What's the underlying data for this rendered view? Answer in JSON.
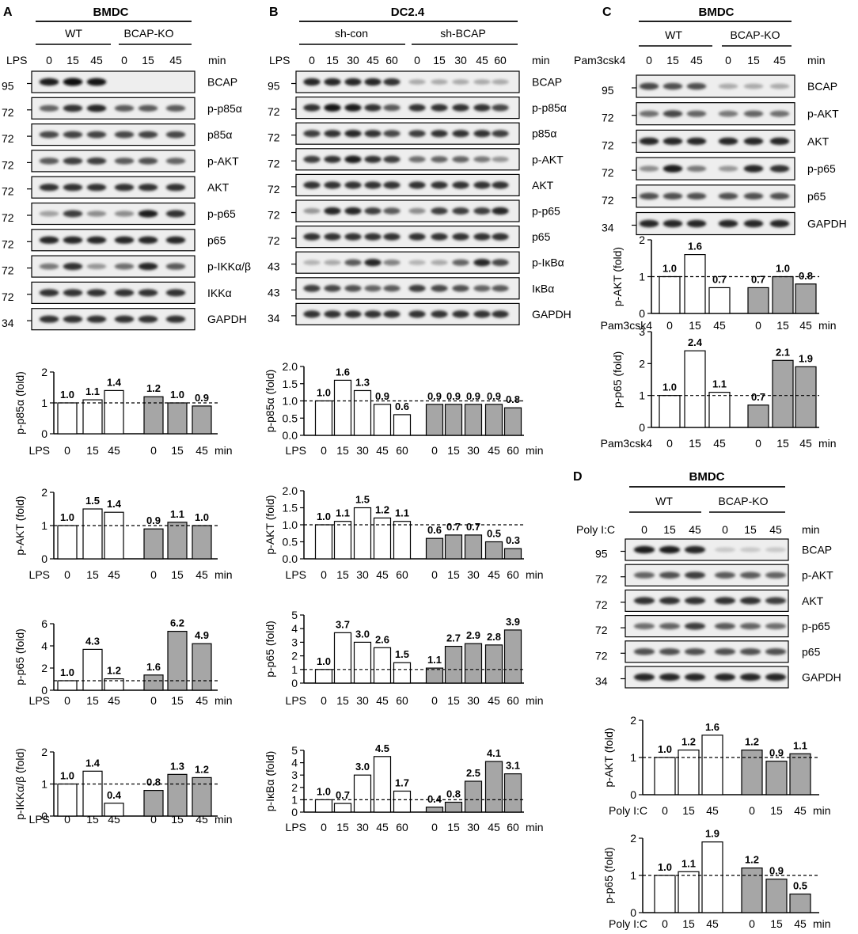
{
  "panels": {
    "A": {
      "letter": "A",
      "cell": "BMDC",
      "lane_var": "LPS",
      "unit": "min",
      "groups": [
        "WT",
        "BCAP-KO"
      ],
      "lanes": [
        "0",
        "15",
        "45",
        "0",
        "15",
        "45"
      ],
      "blots": [
        {
          "label": "BCAP",
          "mw": "95",
          "intensity": [
            0.9,
            1.0,
            0.95,
            0,
            0,
            0
          ]
        },
        {
          "label": "p-p85α",
          "mw": "72",
          "intensity": [
            0.55,
            0.8,
            0.85,
            0.6,
            0.6,
            0.6
          ]
        },
        {
          "label": "p85α",
          "mw": "72",
          "intensity": [
            0.7,
            0.72,
            0.72,
            0.7,
            0.72,
            0.7
          ]
        },
        {
          "label": "p-AKT",
          "mw": "72",
          "intensity": [
            0.6,
            0.75,
            0.75,
            0.6,
            0.65,
            0.55
          ]
        },
        {
          "label": "AKT",
          "mw": "72",
          "intensity": [
            0.8,
            0.8,
            0.8,
            0.8,
            0.8,
            0.8
          ]
        },
        {
          "label": "p-p65",
          "mw": "72",
          "intensity": [
            0.25,
            0.75,
            0.35,
            0.35,
            0.9,
            0.8
          ]
        },
        {
          "label": "p65",
          "mw": "72",
          "intensity": [
            0.85,
            0.85,
            0.85,
            0.85,
            0.85,
            0.85
          ]
        },
        {
          "label": "p-IKKα/β",
          "mw": "72",
          "intensity": [
            0.45,
            0.8,
            0.3,
            0.5,
            0.85,
            0.6
          ]
        },
        {
          "label": "IKKα",
          "mw": "72",
          "intensity": [
            0.8,
            0.8,
            0.8,
            0.8,
            0.8,
            0.8
          ]
        },
        {
          "label": "GAPDH",
          "mw": "34",
          "intensity": [
            0.8,
            0.8,
            0.8,
            0.8,
            0.8,
            0.8
          ]
        }
      ],
      "ticks": [
        "0",
        "15",
        "45",
        "0",
        "15",
        "45"
      ]
    },
    "B": {
      "letter": "B",
      "cell": "DC2.4",
      "lane_var": "LPS",
      "unit": "min",
      "groups": [
        "sh-con",
        "sh-BCAP"
      ],
      "lanes": [
        "0",
        "15",
        "30",
        "45",
        "60",
        "0",
        "15",
        "30",
        "45",
        "60"
      ],
      "blots": [
        {
          "label": "BCAP",
          "mw": "95",
          "intensity": [
            0.85,
            0.85,
            0.85,
            0.85,
            0.8,
            0.2,
            0.2,
            0.2,
            0.2,
            0.2
          ]
        },
        {
          "label": "p-p85α",
          "mw": "72",
          "intensity": [
            0.8,
            0.95,
            0.9,
            0.8,
            0.6,
            0.8,
            0.8,
            0.8,
            0.8,
            0.7
          ]
        },
        {
          "label": "p85α",
          "mw": "72",
          "intensity": [
            0.75,
            0.8,
            0.85,
            0.8,
            0.7,
            0.75,
            0.8,
            0.8,
            0.8,
            0.75
          ]
        },
        {
          "label": "p-AKT",
          "mw": "72",
          "intensity": [
            0.75,
            0.8,
            0.9,
            0.8,
            0.75,
            0.5,
            0.55,
            0.55,
            0.45,
            0.3
          ]
        },
        {
          "label": "AKT",
          "mw": "72",
          "intensity": [
            0.8,
            0.8,
            0.8,
            0.8,
            0.8,
            0.8,
            0.8,
            0.8,
            0.8,
            0.8
          ]
        },
        {
          "label": "p-p65",
          "mw": "72",
          "intensity": [
            0.3,
            0.85,
            0.85,
            0.75,
            0.6,
            0.35,
            0.75,
            0.75,
            0.75,
            0.85
          ]
        },
        {
          "label": "p65",
          "mw": "72",
          "intensity": [
            0.8,
            0.8,
            0.8,
            0.8,
            0.8,
            0.8,
            0.8,
            0.8,
            0.8,
            0.8
          ]
        },
        {
          "label": "p-IκBα",
          "mw": "43",
          "intensity": [
            0.15,
            0.2,
            0.6,
            0.85,
            0.4,
            0.15,
            0.2,
            0.55,
            0.85,
            0.7
          ]
        },
        {
          "label": "IκBα",
          "mw": "43",
          "intensity": [
            0.75,
            0.7,
            0.65,
            0.55,
            0.6,
            0.75,
            0.7,
            0.65,
            0.55,
            0.6
          ]
        },
        {
          "label": "GAPDH",
          "mw": "34",
          "intensity": [
            0.8,
            0.8,
            0.8,
            0.8,
            0.8,
            0.8,
            0.8,
            0.8,
            0.8,
            0.8
          ]
        }
      ],
      "ticks": [
        "0",
        "15",
        "30",
        "45",
        "60",
        "0",
        "15",
        "30",
        "45",
        "60"
      ]
    },
    "C": {
      "letter": "C",
      "cell": "BMDC",
      "lane_var": "Pam3csk4",
      "unit": "min",
      "groups": [
        "WT",
        "BCAP-KO"
      ],
      "lanes": [
        "0",
        "15",
        "45",
        "0",
        "15",
        "45"
      ],
      "blots": [
        {
          "label": "BCAP",
          "mw": "95",
          "intensity": [
            0.7,
            0.65,
            0.65,
            0.2,
            0.2,
            0.2
          ]
        },
        {
          "label": "p-AKT",
          "mw": "72",
          "intensity": [
            0.5,
            0.7,
            0.55,
            0.45,
            0.55,
            0.5
          ]
        },
        {
          "label": "AKT",
          "mw": "72",
          "intensity": [
            0.85,
            0.85,
            0.85,
            0.85,
            0.85,
            0.85
          ]
        },
        {
          "label": "p-p65",
          "mw": "72",
          "intensity": [
            0.35,
            0.9,
            0.45,
            0.3,
            0.85,
            0.8
          ]
        },
        {
          "label": "p65",
          "mw": "72",
          "intensity": [
            0.65,
            0.65,
            0.65,
            0.65,
            0.65,
            0.65
          ]
        },
        {
          "label": "GAPDH",
          "mw": "34",
          "intensity": [
            0.85,
            0.85,
            0.85,
            0.85,
            0.85,
            0.85
          ]
        }
      ],
      "ticks": [
        "0",
        "15",
        "45",
        "0",
        "15",
        "45"
      ]
    },
    "D": {
      "letter": "D",
      "cell": "BMDC",
      "lane_var": "Poly I:C",
      "unit": "min",
      "groups": [
        "WT",
        "BCAP-KO"
      ],
      "lanes": [
        "0",
        "15",
        "45",
        "0",
        "15",
        "45"
      ],
      "blots": [
        {
          "label": "BCAP",
          "mw": "95",
          "intensity": [
            0.9,
            0.9,
            0.85,
            0.05,
            0.05,
            0.05
          ]
        },
        {
          "label": "p-AKT",
          "mw": "72",
          "intensity": [
            0.55,
            0.65,
            0.75,
            0.6,
            0.6,
            0.55
          ]
        },
        {
          "label": "AKT",
          "mw": "72",
          "intensity": [
            0.8,
            0.8,
            0.8,
            0.8,
            0.8,
            0.75
          ]
        },
        {
          "label": "p-p65",
          "mw": "72",
          "intensity": [
            0.5,
            0.55,
            0.75,
            0.6,
            0.55,
            0.5
          ]
        },
        {
          "label": "p65",
          "mw": "72",
          "intensity": [
            0.65,
            0.65,
            0.65,
            0.65,
            0.65,
            0.65
          ]
        },
        {
          "label": "GAPDH",
          "mw": "34",
          "intensity": [
            0.85,
            0.85,
            0.85,
            0.85,
            0.85,
            0.85
          ]
        }
      ],
      "ticks": [
        "0",
        "15",
        "45",
        "0",
        "15",
        "45"
      ]
    }
  },
  "colors": {
    "control_bar": "#ffffff",
    "knockout_bar": "#a6a6a6",
    "stroke": "#000000"
  },
  "chart_data": [
    {
      "panel": "A",
      "type": "bar",
      "ylabel": "p-p85α (fold)",
      "xlabel_left": "LPS",
      "xlabel_right": "min",
      "categories": [
        "0",
        "15",
        "45",
        "0",
        "15",
        "45"
      ],
      "groups": [
        "WT",
        "BCAP-KO"
      ],
      "values": [
        1.0,
        1.1,
        1.4,
        1.2,
        1.0,
        0.9
      ],
      "value_labels": [
        "1.0",
        "1.1",
        "1.4",
        "1.2",
        "1.0",
        "0.9"
      ],
      "yticks": [
        "0",
        "1",
        "2"
      ],
      "ylim": [
        0,
        2
      ],
      "reference_line": 1,
      "show_xlabels": true
    },
    {
      "panel": "A",
      "type": "bar",
      "ylabel": "p-AKT (fold)",
      "xlabel_left": "LPS",
      "xlabel_right": "min",
      "categories": [
        "0",
        "15",
        "45",
        "0",
        "15",
        "45"
      ],
      "groups": [
        "WT",
        "BCAP-KO"
      ],
      "values": [
        1.0,
        1.5,
        1.4,
        0.9,
        1.1,
        1.0
      ],
      "value_labels": [
        "1.0",
        "1.5",
        "1.4",
        "0.9",
        "1.1",
        "1.0"
      ],
      "yticks": [
        "0",
        "1",
        "2"
      ],
      "ylim": [
        0,
        2
      ],
      "reference_line": 1,
      "show_xlabels": true
    },
    {
      "panel": "A",
      "type": "bar",
      "ylabel": "p-p65 (fold)",
      "xlabel_left": "LPS",
      "xlabel_right": "min",
      "categories": [
        "0",
        "15",
        "45",
        "0",
        "15",
        "45"
      ],
      "groups": [
        "WT",
        "BCAP-KO"
      ],
      "values": [
        1.0,
        4.3,
        1.2,
        1.6,
        6.2,
        4.9
      ],
      "value_labels": [
        "1.0",
        "4.3",
        "1.2",
        "1.6",
        "6.2",
        "4.9"
      ],
      "yticks": [
        "0",
        "2",
        "4",
        "6"
      ],
      "ylim": [
        0,
        7
      ],
      "reference_line": 1,
      "show_xlabels": true
    },
    {
      "panel": "A",
      "type": "bar",
      "ylabel": "p-IKKα/β (fold)",
      "xlabel_left": "LPS",
      "xlabel_right": "min",
      "categories": [
        "0",
        "15",
        "45",
        "0",
        "15",
        "45"
      ],
      "groups": [
        "WT",
        "BCAP-KO"
      ],
      "values": [
        1.0,
        1.4,
        0.4,
        0.8,
        1.3,
        1.2
      ],
      "value_labels": [
        "1.0",
        "1.4",
        "0.4",
        "0.8",
        "1.3",
        "1.2"
      ],
      "yticks": [
        "0",
        "1",
        "2"
      ],
      "ylim": [
        0,
        2
      ],
      "reference_line": 1,
      "show_xlabels": true
    },
    {
      "panel": "B",
      "type": "bar",
      "ylabel": "p-p85α (fold)",
      "xlabel_left": "LPS",
      "xlabel_right": "min",
      "categories": [
        "0",
        "15",
        "30",
        "45",
        "60",
        "0",
        "15",
        "30",
        "45",
        "60"
      ],
      "groups": [
        "sh-con",
        "sh-BCAP"
      ],
      "values": [
        1.0,
        1.6,
        1.3,
        0.9,
        0.6,
        0.9,
        0.9,
        0.9,
        0.9,
        0.8
      ],
      "value_labels": [
        "1.0",
        "1.6",
        "1.3",
        "0.9",
        "0.6",
        "0.9",
        "0.9",
        "0.9",
        "0.9",
        "0.8"
      ],
      "yticks": [
        "0.0",
        "0.5",
        "1.0",
        "1.5",
        "2.0"
      ],
      "ylim": [
        0,
        2
      ],
      "reference_line": 1,
      "show_xlabels": true
    },
    {
      "panel": "B",
      "type": "bar",
      "ylabel": "p-AKT (fold)",
      "xlabel_left": "LPS",
      "xlabel_right": "min",
      "categories": [
        "0",
        "15",
        "30",
        "45",
        "60",
        "0",
        "15",
        "30",
        "45",
        "60"
      ],
      "groups": [
        "sh-con",
        "sh-BCAP"
      ],
      "values": [
        1.0,
        1.1,
        1.5,
        1.2,
        1.1,
        0.6,
        0.7,
        0.7,
        0.5,
        0.3
      ],
      "value_labels": [
        "1.0",
        "1.1",
        "1.5",
        "1.2",
        "1.1",
        "0.6",
        "0.7",
        "0.7",
        "0.5",
        "0.3"
      ],
      "yticks": [
        "0.0",
        "0.5",
        "1.0",
        "1.5",
        "2.0"
      ],
      "ylim": [
        0,
        2
      ],
      "reference_line": 1,
      "show_xlabels": true
    },
    {
      "panel": "B",
      "type": "bar",
      "ylabel": "p-p65 (fold)",
      "xlabel_left": "LPS",
      "xlabel_right": "min",
      "categories": [
        "0",
        "15",
        "30",
        "45",
        "60",
        "0",
        "15",
        "30",
        "45",
        "60"
      ],
      "groups": [
        "sh-con",
        "sh-BCAP"
      ],
      "values": [
        1.0,
        3.7,
        3.0,
        2.6,
        1.5,
        1.1,
        2.7,
        2.9,
        2.8,
        3.9
      ],
      "value_labels": [
        "1.0",
        "3.7",
        "3.0",
        "2.6",
        "1.5",
        "1.1",
        "2.7",
        "2.9",
        "2.8",
        "3.9"
      ],
      "yticks": [
        "0",
        "1",
        "2",
        "3",
        "4",
        "5"
      ],
      "ylim": [
        0,
        5
      ],
      "reference_line": 1,
      "show_xlabels": true
    },
    {
      "panel": "B",
      "type": "bar",
      "ylabel": "p-IκBα (fold)",
      "xlabel_left": "LPS",
      "xlabel_right": "min",
      "categories": [
        "0",
        "15",
        "30",
        "45",
        "60",
        "0",
        "15",
        "30",
        "45",
        "60"
      ],
      "groups": [
        "sh-con",
        "sh-BCAP"
      ],
      "values": [
        1.0,
        0.7,
        3.0,
        4.5,
        1.7,
        0.4,
        0.8,
        2.5,
        4.1,
        3.1
      ],
      "value_labels": [
        "1.0",
        "0.7",
        "3.0",
        "4.5",
        "1.7",
        "0.4",
        "0.8",
        "2.5",
        "4.1",
        "3.1"
      ],
      "yticks": [
        "0",
        "1",
        "2",
        "3",
        "4",
        "5"
      ],
      "ylim": [
        0,
        5
      ],
      "reference_line": 1,
      "show_xlabels": true
    },
    {
      "panel": "C",
      "type": "bar",
      "ylabel": "p-AKT (fold)",
      "xlabel_left": "Pam3csk4",
      "xlabel_right": "min",
      "categories": [
        "0",
        "15",
        "45",
        "0",
        "15",
        "45"
      ],
      "groups": [
        "WT",
        "BCAP-KO"
      ],
      "values": [
        1.0,
        1.6,
        0.7,
        0.7,
        1.0,
        0.8
      ],
      "value_labels": [
        "1.0",
        "1.6",
        "0.7",
        "0.7",
        "1.0",
        "0.8"
      ],
      "yticks": [
        "0",
        "1",
        "2"
      ],
      "ylim": [
        0,
        2
      ],
      "reference_line": 1,
      "show_xlabels": true
    },
    {
      "panel": "C",
      "type": "bar",
      "ylabel": "p-p65 (fold)",
      "xlabel_left": "Pam3csk4",
      "xlabel_right": "min",
      "categories": [
        "0",
        "15",
        "45",
        "0",
        "15",
        "45"
      ],
      "groups": [
        "WT",
        "BCAP-KO"
      ],
      "values": [
        1.0,
        2.4,
        1.1,
        0.7,
        2.1,
        1.9
      ],
      "value_labels": [
        "1.0",
        "2.4",
        "1.1",
        "0.7",
        "2.1",
        "1.9"
      ],
      "yticks": [
        "0",
        "1",
        "2",
        "3"
      ],
      "ylim": [
        0,
        3
      ],
      "reference_line": 1,
      "show_xlabels": true
    },
    {
      "panel": "D",
      "type": "bar",
      "ylabel": "p-AKT (fold)",
      "xlabel_left": "Poly I:C",
      "xlabel_right": "min",
      "categories": [
        "0",
        "15",
        "45",
        "0",
        "15",
        "45"
      ],
      "groups": [
        "WT",
        "BCAP-KO"
      ],
      "values": [
        1.0,
        1.2,
        1.6,
        1.2,
        0.9,
        1.1
      ],
      "value_labels": [
        "1.0",
        "1.2",
        "1.6",
        "1.2",
        "0.9",
        "1.1"
      ],
      "yticks": [
        "0",
        "1",
        "2"
      ],
      "ylim": [
        0,
        2
      ],
      "reference_line": 1,
      "show_xlabels": true
    },
    {
      "panel": "D",
      "type": "bar",
      "ylabel": "p-p65 (fold)",
      "xlabel_left": "Poly I:C",
      "xlabel_right": "min",
      "categories": [
        "0",
        "15",
        "45",
        "0",
        "15",
        "45"
      ],
      "groups": [
        "WT",
        "BCAP-KO"
      ],
      "values": [
        1.0,
        1.1,
        1.9,
        1.2,
        0.9,
        0.5
      ],
      "value_labels": [
        "1.0",
        "1.1",
        "1.9",
        "1.2",
        "0.9",
        "0.5"
      ],
      "yticks": [
        "0",
        "1",
        "2"
      ],
      "ylim": [
        0,
        2
      ],
      "reference_line": 1,
      "show_xlabels": true
    }
  ]
}
